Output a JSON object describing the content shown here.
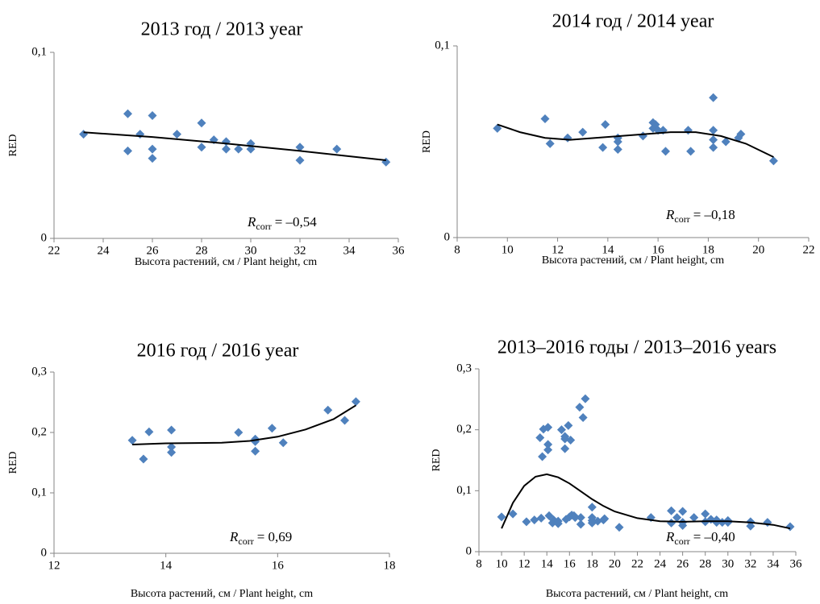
{
  "chart_data": [
    {
      "type": "scatter",
      "title": "2013 год / 2013  year",
      "x_label": "Высота растений, см / Plant height, cm",
      "y_label": "RED",
      "xlim": [
        22,
        36
      ],
      "ylim": [
        0,
        0.1
      ],
      "xticks": [
        22,
        24,
        26,
        28,
        30,
        32,
        34,
        36
      ],
      "yticks": [
        0,
        {
          "value": 0.1,
          "label": "0,1"
        }
      ],
      "series": [
        {
          "color": "#4f81bd",
          "x": [
            23.2,
            25,
            25,
            25.5,
            26,
            26,
            26,
            27,
            28,
            28,
            28.5,
            29,
            29,
            29.5,
            30,
            30,
            32,
            32,
            33.5,
            35.5
          ],
          "values": [
            0.056,
            0.067,
            0.047,
            0.056,
            0.066,
            0.048,
            0.043,
            0.056,
            0.062,
            0.049,
            0.053,
            0.052,
            0.048,
            0.048,
            0.051,
            0.048,
            0.049,
            0.042,
            0.048,
            0.041
          ]
        }
      ],
      "trendline": {
        "color": "#000000",
        "x": [
          23.2,
          26,
          29,
          32,
          35.5
        ],
        "values": [
          0.057,
          0.0545,
          0.051,
          0.047,
          0.042
        ]
      },
      "annotation": {
        "symbol": "R",
        "subscript": "corr",
        "text": "=  –0,54"
      }
    },
    {
      "type": "scatter",
      "title": "2014 год / 2014 year",
      "x_label": "Высота растений, см / Plant height, cm",
      "y_label": "RED",
      "xlim": [
        8,
        22
      ],
      "ylim": [
        0,
        0.1
      ],
      "xticks": [
        8,
        10,
        12,
        14,
        16,
        18,
        20,
        22
      ],
      "yticks": [
        0,
        {
          "value": 0.1,
          "label": "0,1"
        }
      ],
      "series": [
        {
          "color": "#4f81bd",
          "x": [
            9.6,
            11.5,
            11.7,
            12.4,
            13,
            13.9,
            13.8,
            14.4,
            14.4,
            14.4,
            15.4,
            15.8,
            15.8,
            15.9,
            16,
            16.2,
            16.3,
            17.2,
            17.3,
            18.2,
            18.2,
            18.2,
            18.2,
            18.7,
            19.2,
            19.3,
            20.6
          ],
          "values": [
            0.057,
            0.062,
            0.049,
            0.052,
            0.055,
            0.059,
            0.047,
            0.052,
            0.05,
            0.046,
            0.053,
            0.057,
            0.06,
            0.059,
            0.056,
            0.056,
            0.045,
            0.056,
            0.045,
            0.073,
            0.056,
            0.051,
            0.047,
            0.05,
            0.052,
            0.054,
            0.04
          ]
        }
      ],
      "trendline": {
        "color": "#000000",
        "x": [
          9.6,
          10.5,
          11.5,
          12.5,
          13.5,
          14.5,
          15.5,
          16.5,
          17.5,
          18.5,
          19.5,
          20.6
        ],
        "values": [
          0.059,
          0.055,
          0.052,
          0.051,
          0.052,
          0.053,
          0.054,
          0.055,
          0.055,
          0.053,
          0.049,
          0.042
        ]
      },
      "annotation": {
        "symbol": "R",
        "subscript": "corr",
        "text": "=  –0,18"
      }
    },
    {
      "type": "scatter",
      "title": "2016 год / 2016 year",
      "x_label": "Высота растений, см / Plant height, cm",
      "y_label": "RED",
      "xlim": [
        12,
        18
      ],
      "ylim": [
        0,
        0.3
      ],
      "xticks": [
        12,
        14,
        16,
        18
      ],
      "yticks": [
        0,
        {
          "value": 0.1,
          "label": "0,1"
        },
        {
          "value": 0.2,
          "label": "0,2"
        },
        {
          "value": 0.3,
          "label": "0,3"
        }
      ],
      "series": [
        {
          "color": "#4f81bd",
          "x": [
            13.4,
            13.6,
            13.7,
            14.1,
            14.1,
            14.1,
            15.3,
            15.6,
            15.6,
            15.6,
            15.9,
            16.1,
            16.9,
            17.2,
            17.4
          ],
          "values": [
            0.187,
            0.156,
            0.201,
            0.204,
            0.176,
            0.167,
            0.2,
            0.189,
            0.185,
            0.169,
            0.207,
            0.183,
            0.237,
            0.22,
            0.251
          ]
        }
      ],
      "trendline": {
        "color": "#000000",
        "x": [
          13.4,
          14,
          15,
          15.5,
          16,
          16.5,
          17,
          17.4
        ],
        "values": [
          0.18,
          0.182,
          0.183,
          0.186,
          0.193,
          0.205,
          0.222,
          0.245
        ]
      },
      "annotation": {
        "symbol": "R",
        "subscript": "corr",
        "text": "=  0,69"
      }
    },
    {
      "type": "scatter",
      "title": "2013–2016 годы / 2013–2016 years",
      "x_label": "Высота растений, см / Plant height, cm",
      "y_label": "RED",
      "xlim": [
        8,
        36
      ],
      "ylim": [
        0,
        0.3
      ],
      "xticks": [
        8,
        10,
        12,
        14,
        16,
        18,
        20,
        22,
        24,
        26,
        28,
        30,
        32,
        34,
        36
      ],
      "yticks": [
        0,
        {
          "value": 0.1,
          "label": "0,1"
        },
        {
          "value": 0.2,
          "label": "0,2"
        },
        {
          "value": 0.3,
          "label": "0,3"
        }
      ],
      "series": [
        {
          "color": "#4f81bd",
          "x": [
            23.2,
            25,
            25,
            25.5,
            26,
            26,
            26,
            27,
            28,
            28,
            28.5,
            29,
            29,
            29.5,
            30,
            30,
            32,
            32,
            33.5,
            35.5,
            10,
            11,
            12.2,
            12.9,
            13.5,
            14.2,
            14.5,
            14.6,
            15,
            15,
            15.7,
            16,
            16.2,
            16.4,
            16.5,
            17,
            17,
            18,
            18,
            18,
            18,
            18.5,
            19,
            19.1,
            20.4,
            13.4,
            13.6,
            13.7,
            14.1,
            14.1,
            14.1,
            15.3,
            15.6,
            15.6,
            15.6,
            15.9,
            16.1,
            16.9,
            17.2,
            17.4
          ],
          "values": [
            0.056,
            0.067,
            0.047,
            0.056,
            0.066,
            0.048,
            0.043,
            0.056,
            0.062,
            0.049,
            0.053,
            0.052,
            0.048,
            0.048,
            0.051,
            0.048,
            0.049,
            0.042,
            0.048,
            0.041,
            0.057,
            0.062,
            0.049,
            0.052,
            0.055,
            0.059,
            0.047,
            0.052,
            0.05,
            0.046,
            0.053,
            0.057,
            0.06,
            0.059,
            0.056,
            0.056,
            0.045,
            0.073,
            0.056,
            0.051,
            0.047,
            0.05,
            0.052,
            0.054,
            0.04,
            0.187,
            0.156,
            0.201,
            0.204,
            0.176,
            0.167,
            0.2,
            0.189,
            0.185,
            0.169,
            0.207,
            0.183,
            0.237,
            0.22,
            0.251
          ]
        }
      ],
      "trendline": {
        "color": "#000000",
        "x": [
          10,
          11,
          12,
          13,
          14,
          15,
          16,
          17,
          18,
          19,
          20,
          22,
          24,
          26,
          28,
          30,
          32,
          34,
          35.5
        ],
        "values": [
          0.038,
          0.08,
          0.108,
          0.123,
          0.127,
          0.122,
          0.112,
          0.099,
          0.086,
          0.075,
          0.066,
          0.055,
          0.05,
          0.049,
          0.05,
          0.05,
          0.048,
          0.044,
          0.038
        ]
      },
      "annotation": {
        "symbol": "R",
        "subscript": "corr",
        "text": "=  –0,40"
      }
    }
  ]
}
